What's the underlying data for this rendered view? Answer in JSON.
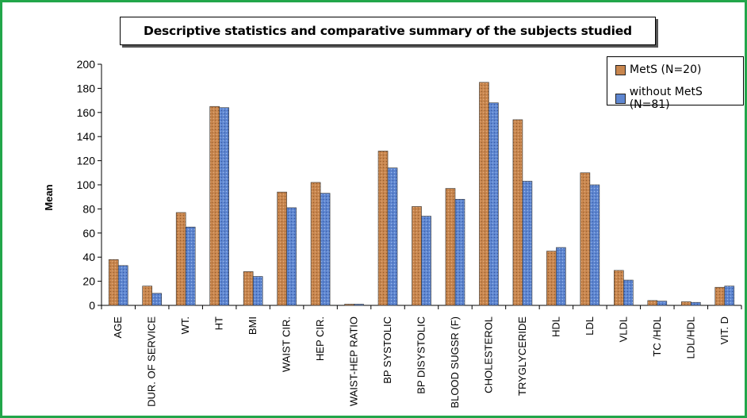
{
  "colors": {
    "frame_border": "#22a64a",
    "series_1": "#c8864e",
    "series_2": "#5e86d0"
  },
  "chart_data": {
    "type": "bar",
    "title": "Descriptive statistics and comparative summary of the subjects studied",
    "ylabel": "Mean",
    "xlabel": "",
    "ylim": [
      0,
      200
    ],
    "yticks": [
      0,
      20,
      40,
      60,
      80,
      100,
      120,
      140,
      160,
      180,
      200
    ],
    "grid": false,
    "legend_position": "top-right",
    "categories": [
      "AGE",
      "DUR. OF SERVICE",
      "WT.",
      "HT",
      "BMI",
      "WAIST CIR.",
      "HEP CIR.",
      "WAIST-HEP RATIO",
      "BP SYSTOLIC",
      "BP DISYSTOLIC",
      "BLOOD SUGSR (F)",
      "CHOLESTEROL",
      "TRYGLYCERIDE",
      "HDL",
      "LDL",
      "VLDL",
      "TC /HDL",
      "LDL/HDL",
      "VIT. D"
    ],
    "series": [
      {
        "name": "MetS (N=20)",
        "values": [
          38,
          16,
          77,
          165,
          28,
          94,
          102,
          1,
          128,
          82,
          97,
          185,
          154,
          45,
          110,
          29,
          4,
          3,
          15
        ]
      },
      {
        "name": "without MetS (N=81)",
        "values": [
          33,
          10,
          65,
          164,
          24,
          81,
          93,
          1,
          114,
          74,
          88,
          168,
          103,
          48,
          100,
          21,
          3.5,
          2.5,
          16
        ]
      }
    ]
  }
}
